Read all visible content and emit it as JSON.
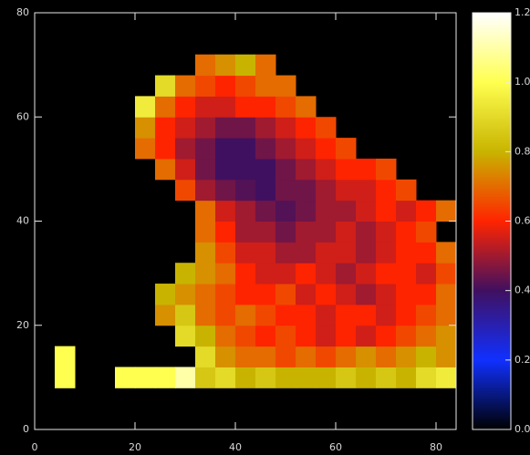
{
  "chart_data": {
    "type": "heatmap",
    "xbins": [
      0,
      4,
      8,
      12,
      16,
      20,
      24,
      28,
      32,
      36,
      40,
      44,
      48,
      52,
      56,
      60,
      64,
      68,
      72,
      76,
      80,
      84
    ],
    "ybins": [
      0,
      4,
      8,
      12,
      16,
      20,
      24,
      28,
      32,
      36,
      40,
      44,
      48,
      52,
      56,
      60,
      64,
      68,
      72,
      76,
      80
    ],
    "z": [
      [
        null,
        null,
        null,
        null,
        null,
        null,
        null,
        null,
        null,
        null,
        null,
        null,
        null,
        null,
        null,
        null,
        null,
        null,
        null,
        null,
        null
      ],
      [
        null,
        null,
        null,
        null,
        null,
        null,
        null,
        null,
        null,
        null,
        null,
        null,
        null,
        null,
        null,
        null,
        null,
        null,
        null,
        null,
        null
      ],
      [
        null,
        1.0,
        null,
        null,
        1.0,
        1.0,
        1.0,
        1.1,
        0.85,
        0.9,
        0.8,
        0.85,
        0.8,
        0.8,
        0.8,
        0.85,
        0.8,
        0.85,
        0.8,
        0.9,
        0.95
      ],
      [
        null,
        1.0,
        null,
        null,
        null,
        null,
        null,
        null,
        0.9,
        0.75,
        0.7,
        0.7,
        0.65,
        0.7,
        0.65,
        0.7,
        0.75,
        0.7,
        0.75,
        0.8,
        0.75
      ],
      [
        null,
        null,
        null,
        null,
        null,
        null,
        null,
        0.9,
        0.8,
        0.7,
        0.65,
        0.6,
        0.65,
        0.6,
        0.55,
        0.6,
        0.55,
        0.6,
        0.65,
        0.7,
        0.75
      ],
      [
        null,
        null,
        null,
        null,
        null,
        null,
        0.75,
        0.85,
        0.7,
        0.65,
        0.7,
        0.65,
        0.6,
        0.6,
        0.55,
        0.6,
        0.6,
        0.55,
        0.6,
        0.65,
        0.7
      ],
      [
        null,
        null,
        null,
        null,
        null,
        null,
        0.8,
        0.75,
        0.7,
        0.65,
        0.6,
        0.6,
        0.65,
        0.55,
        0.6,
        0.55,
        0.5,
        0.55,
        0.6,
        0.6,
        0.7
      ],
      [
        null,
        null,
        null,
        null,
        null,
        null,
        null,
        0.8,
        0.75,
        0.7,
        0.6,
        0.55,
        0.55,
        0.6,
        0.55,
        0.5,
        0.55,
        0.6,
        0.6,
        0.55,
        0.65
      ],
      [
        null,
        null,
        null,
        null,
        null,
        null,
        null,
        null,
        0.75,
        0.65,
        0.55,
        0.55,
        0.5,
        0.5,
        0.55,
        0.55,
        0.5,
        0.55,
        0.6,
        0.6,
        0.7
      ],
      [
        null,
        null,
        null,
        null,
        null,
        null,
        null,
        null,
        0.7,
        0.6,
        0.5,
        0.5,
        0.45,
        0.5,
        0.5,
        0.55,
        0.5,
        0.55,
        0.6,
        0.65,
        null
      ],
      [
        null,
        null,
        null,
        null,
        null,
        null,
        null,
        null,
        0.7,
        0.55,
        0.5,
        0.45,
        0.42,
        0.45,
        0.5,
        0.5,
        0.55,
        0.6,
        0.55,
        0.6,
        0.7
      ],
      [
        null,
        null,
        null,
        null,
        null,
        null,
        null,
        0.65,
        0.5,
        0.45,
        0.42,
        0.4,
        0.45,
        0.45,
        0.5,
        0.55,
        0.55,
        0.6,
        0.65,
        null,
        null
      ],
      [
        null,
        null,
        null,
        null,
        null,
        null,
        0.7,
        0.55,
        0.45,
        0.4,
        0.4,
        0.4,
        0.45,
        0.5,
        0.55,
        0.6,
        0.6,
        0.65,
        null,
        null,
        null
      ],
      [
        null,
        null,
        null,
        null,
        null,
        0.7,
        0.6,
        0.5,
        0.45,
        0.4,
        0.4,
        0.45,
        0.5,
        0.55,
        0.6,
        0.65,
        null,
        null,
        null,
        null,
        null
      ],
      [
        null,
        null,
        null,
        null,
        null,
        0.75,
        0.6,
        0.55,
        0.5,
        0.45,
        0.45,
        0.5,
        0.55,
        0.6,
        0.65,
        null,
        null,
        null,
        null,
        null,
        null
      ],
      [
        null,
        null,
        null,
        null,
        null,
        0.95,
        0.7,
        0.6,
        0.55,
        0.55,
        0.6,
        0.6,
        0.65,
        0.7,
        null,
        null,
        null,
        null,
        null,
        null,
        null
      ],
      [
        null,
        null,
        null,
        null,
        null,
        null,
        0.9,
        0.7,
        0.65,
        0.6,
        0.65,
        0.7,
        0.7,
        null,
        null,
        null,
        null,
        null,
        null,
        null,
        null
      ],
      [
        null,
        null,
        null,
        null,
        null,
        null,
        null,
        null,
        0.7,
        0.75,
        0.8,
        0.7,
        null,
        null,
        null,
        null,
        null,
        null,
        null,
        null,
        null
      ],
      [
        null,
        null,
        null,
        null,
        null,
        null,
        null,
        null,
        null,
        null,
        null,
        null,
        null,
        null,
        null,
        null,
        null,
        null,
        null,
        null,
        null
      ],
      [
        null,
        null,
        null,
        null,
        null,
        null,
        null,
        null,
        null,
        null,
        null,
        null,
        null,
        null,
        null,
        null,
        null,
        null,
        null,
        null,
        null
      ]
    ],
    "xlim": [
      0,
      84
    ],
    "ylim": [
      0,
      80
    ],
    "xticks": [
      0,
      20,
      40,
      60,
      80
    ],
    "yticks": [
      0,
      20,
      40,
      60,
      80
    ],
    "zlim": [
      0,
      1.2
    ],
    "zticks": [
      {
        "value": 0,
        "label": "0.0"
      },
      0.2,
      0.4,
      0.6,
      0.8,
      {
        "value": 1,
        "label": "1.0"
      },
      1.2
    ],
    "colormap": [
      "#000000",
      "#1030ff",
      "#401060",
      "#ff2400",
      "#c8b400",
      "#ffff50",
      "#ffffff"
    ]
  }
}
